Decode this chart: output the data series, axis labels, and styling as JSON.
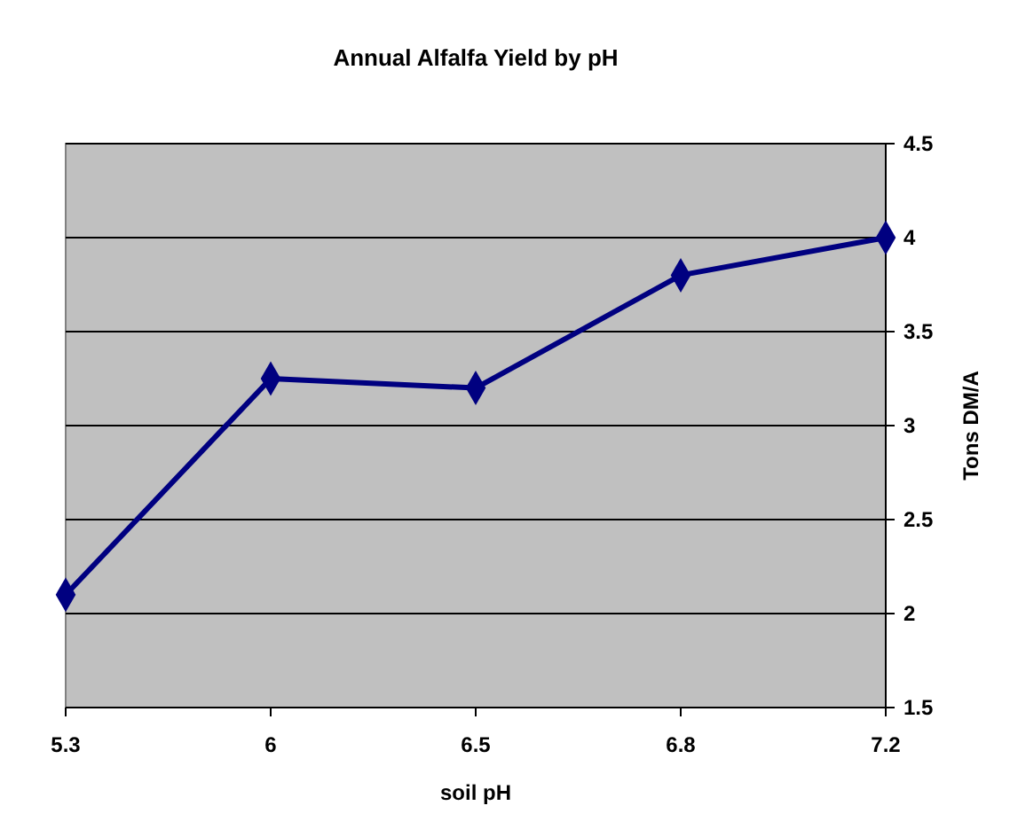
{
  "chart_data": {
    "type": "line",
    "title": "Annual Alfalfa Yield by pH",
    "xlabel": "soil pH",
    "ylabel": "Tons DM/A",
    "categories": [
      "5.3",
      "6",
      "6.5",
      "6.8",
      "7.2"
    ],
    "series": [
      {
        "color": "#000080",
        "values": [
          2.1,
          3.25,
          3.2,
          3.8,
          4.0
        ]
      }
    ],
    "ylim": [
      1.5,
      4.5
    ],
    "yticks": [
      1.5,
      2,
      2.5,
      3,
      3.5,
      4,
      4.5
    ],
    "grid": "y",
    "marker": "diamond",
    "line_style": "solid"
  }
}
